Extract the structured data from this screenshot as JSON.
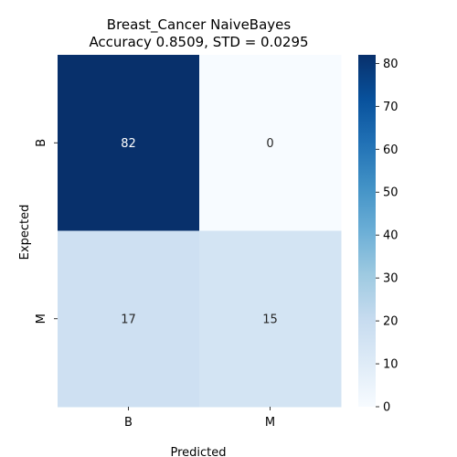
{
  "chart_data": {
    "type": "heatmap",
    "title_line1": "Breast_Cancer NaiveBayes",
    "title_line2": "Accuracy 0.8509, STD = 0.0295",
    "xlabel": "Predicted",
    "ylabel": "Expected",
    "x_categories": [
      "B",
      "M"
    ],
    "y_categories": [
      "B",
      "M"
    ],
    "values": [
      [
        82,
        0
      ],
      [
        17,
        15
      ]
    ],
    "colorscale": "Blues",
    "colorbar": {
      "min": 0,
      "max": 82,
      "ticks": [
        0,
        10,
        20,
        30,
        40,
        50,
        60,
        70,
        80
      ]
    },
    "annotate": true
  }
}
